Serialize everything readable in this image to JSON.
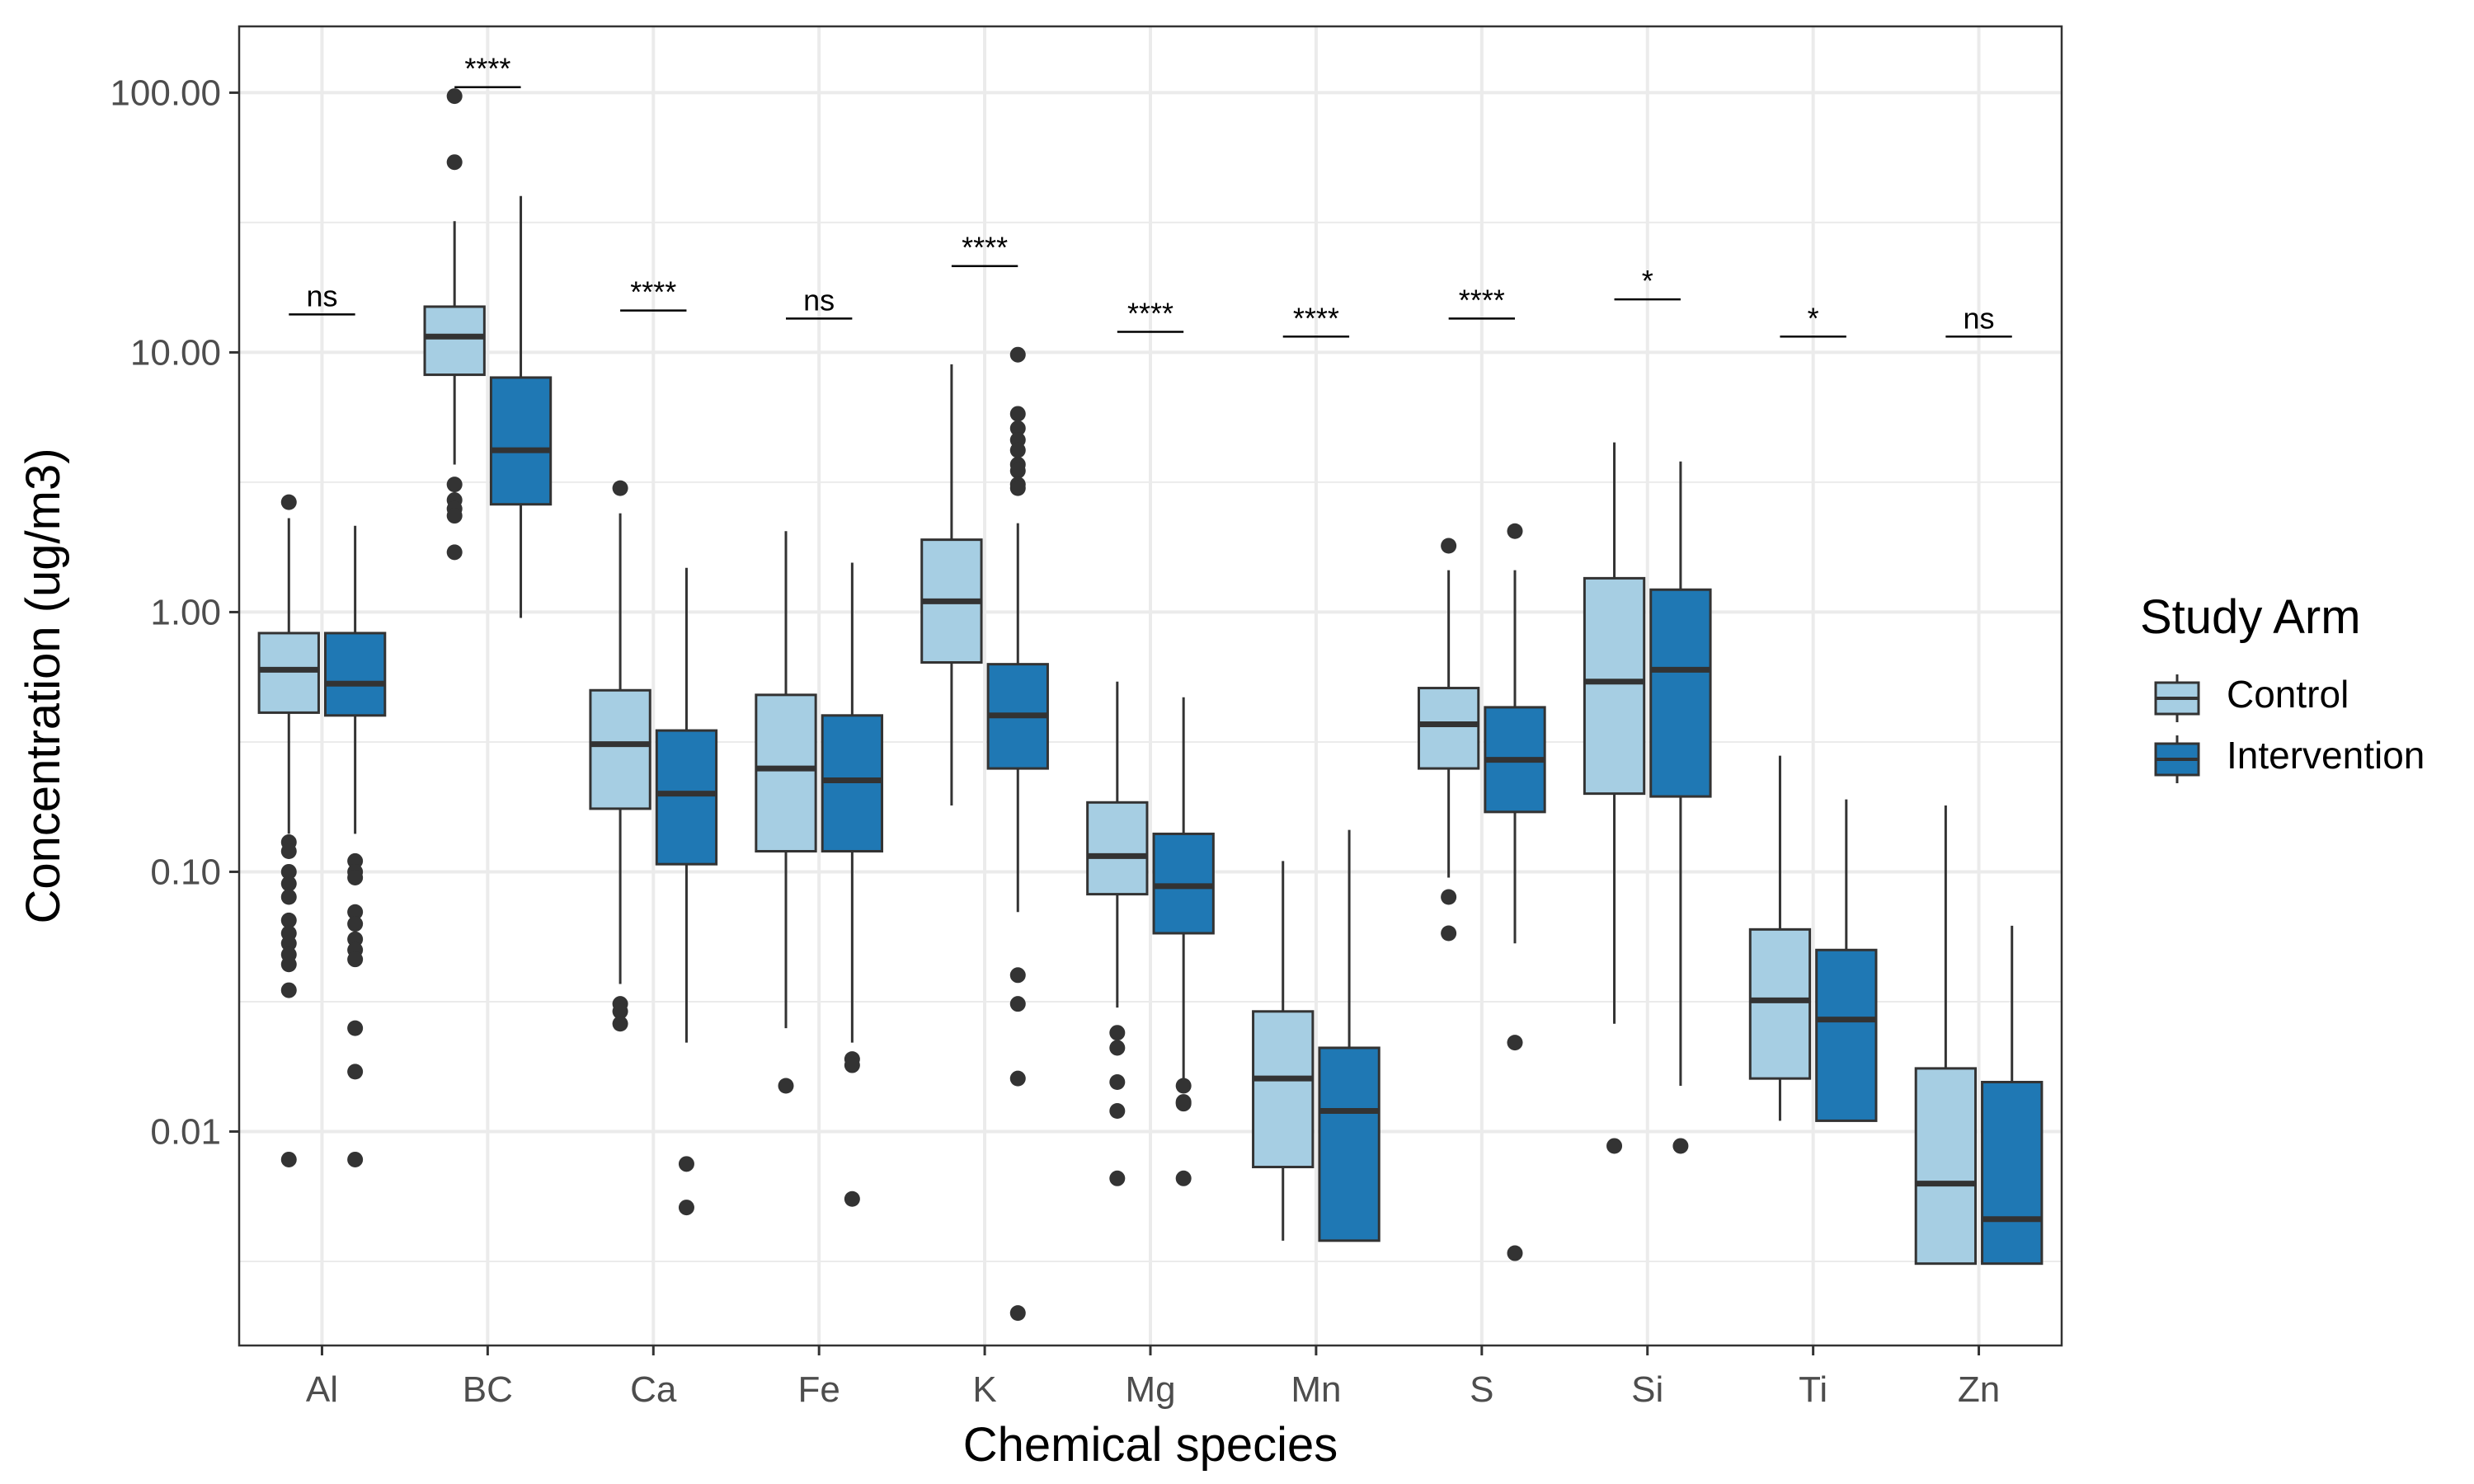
{
  "chart_data": {
    "type": "boxplot",
    "xlabel": "Chemical species",
    "ylabel": "Concentration (ug/m3)",
    "y_scale": "log10",
    "ylim": [
      0.0015,
      180
    ],
    "y_ticks": [
      0.01,
      0.1,
      1,
      10,
      100
    ],
    "y_tick_labels": [
      "0.01",
      "0.10",
      "1.00",
      "10.00",
      "100.00"
    ],
    "grid": true,
    "legend": {
      "title": "Study Arm",
      "placement": "right",
      "entries": [
        "Control",
        "Intervention"
      ]
    },
    "colors": {
      "Control": "#a6cee3",
      "Intervention": "#1f78b4",
      "outline": "#333333",
      "grid": "#ebebeb"
    },
    "categories": [
      "Al",
      "BC",
      "Ca",
      "Fe",
      "K",
      "Mg",
      "Mn",
      "S",
      "Si",
      "Ti",
      "Zn"
    ],
    "significance": [
      "ns",
      "****",
      "****",
      "ns",
      "****",
      "****",
      "****",
      "****",
      "*",
      "*",
      "ns"
    ],
    "significance_bracket_y": [
      14,
      105,
      14.5,
      13.5,
      21.5,
      12,
      11.5,
      13.5,
      16,
      11.5,
      11.5
    ],
    "series": [
      {
        "name": "Control",
        "boxes": [
          {
            "whisker_low": 0.14,
            "q1": 0.41,
            "median": 0.6,
            "q3": 0.83,
            "whisker_high": 2.3,
            "outliers": [
              2.65,
              0.13,
              0.12,
              0.1,
              0.09,
              0.08,
              0.065,
              0.058,
              0.053,
              0.048,
              0.044,
              0.035,
              0.0078
            ]
          },
          {
            "whisker_low": 3.7,
            "q1": 8.2,
            "median": 11.5,
            "q3": 15,
            "whisker_high": 32,
            "outliers": [
              97,
              54,
              3.1,
              2.7,
              2.5,
              2.35,
              1.7
            ]
          },
          {
            "whisker_low": 0.037,
            "q1": 0.175,
            "median": 0.31,
            "q3": 0.5,
            "whisker_high": 2.4,
            "outliers": [
              3.0,
              0.031,
              0.029,
              0.026
            ]
          },
          {
            "whisker_low": 0.025,
            "q1": 0.12,
            "median": 0.25,
            "q3": 0.48,
            "whisker_high": 2.05,
            "outliers": [
              0.015
            ]
          },
          {
            "whisker_low": 0.18,
            "q1": 0.64,
            "median": 1.1,
            "q3": 1.9,
            "whisker_high": 9.0,
            "outliers": []
          },
          {
            "whisker_low": 0.03,
            "q1": 0.082,
            "median": 0.115,
            "q3": 0.185,
            "whisker_high": 0.54,
            "outliers": [
              0.024,
              0.021,
              0.0155,
              0.012,
              0.0066
            ]
          },
          {
            "whisker_low": 0.0038,
            "q1": 0.0073,
            "median": 0.016,
            "q3": 0.029,
            "whisker_high": 0.11,
            "outliers": []
          },
          {
            "whisker_low": 0.095,
            "q1": 0.25,
            "median": 0.37,
            "q3": 0.51,
            "whisker_high": 1.45,
            "outliers": [
              1.8,
              0.08,
              0.058
            ]
          },
          {
            "whisker_low": 0.026,
            "q1": 0.2,
            "median": 0.54,
            "q3": 1.35,
            "whisker_high": 4.5,
            "outliers": [
              0.0088
            ]
          },
          {
            "whisker_low": 0.011,
            "q1": 0.016,
            "median": 0.032,
            "q3": 0.06,
            "whisker_high": 0.28,
            "outliers": []
          },
          {
            "whisker_low": 0.0031,
            "q1": 0.0031,
            "median": 0.0063,
            "q3": 0.0175,
            "whisker_high": 0.18,
            "outliers": []
          }
        ]
      },
      {
        "name": "Intervention",
        "boxes": [
          {
            "whisker_low": 0.14,
            "q1": 0.4,
            "median": 0.53,
            "q3": 0.83,
            "whisker_high": 2.15,
            "outliers": [
              0.11,
              0.1,
              0.095,
              0.07,
              0.063,
              0.055,
              0.05,
              0.046,
              0.025,
              0.017,
              0.0078
            ]
          },
          {
            "whisker_low": 0.95,
            "q1": 2.6,
            "median": 4.2,
            "q3": 8.0,
            "whisker_high": 40,
            "outliers": []
          },
          {
            "whisker_low": 0.022,
            "q1": 0.107,
            "median": 0.2,
            "q3": 0.35,
            "whisker_high": 1.48,
            "outliers": [
              0.0075,
              0.0051
            ]
          },
          {
            "whisker_low": 0.022,
            "q1": 0.12,
            "median": 0.225,
            "q3": 0.4,
            "whisker_high": 1.55,
            "outliers": [
              0.019,
              0.018,
              0.0055
            ]
          },
          {
            "whisker_low": 0.07,
            "q1": 0.25,
            "median": 0.4,
            "q3": 0.63,
            "whisker_high": 2.2,
            "outliers": [
              9.8,
              5.8,
              5.1,
              4.6,
              4.2,
              3.7,
              3.5,
              3.1,
              3.0,
              0.04,
              0.031,
              0.016,
              0.002
            ]
          },
          {
            "whisker_low": 0.016,
            "q1": 0.058,
            "median": 0.088,
            "q3": 0.14,
            "whisker_high": 0.47,
            "outliers": [
              0.015,
              0.013,
              0.0128,
              0.0066
            ]
          },
          {
            "whisker_low": 0.0038,
            "q1": 0.0038,
            "median": 0.012,
            "q3": 0.021,
            "whisker_high": 0.145,
            "outliers": []
          },
          {
            "whisker_low": 0.053,
            "q1": 0.17,
            "median": 0.27,
            "q3": 0.43,
            "whisker_high": 1.45,
            "outliers": [
              2.05,
              0.022,
              0.0034
            ]
          },
          {
            "whisker_low": 0.015,
            "q1": 0.195,
            "median": 0.6,
            "q3": 1.22,
            "whisker_high": 3.8,
            "outliers": [
              0.0088
            ]
          },
          {
            "whisker_low": 0.011,
            "q1": 0.011,
            "median": 0.027,
            "q3": 0.05,
            "whisker_high": 0.19,
            "outliers": []
          },
          {
            "whisker_low": 0.0031,
            "q1": 0.0031,
            "median": 0.0046,
            "q3": 0.0155,
            "whisker_high": 0.062,
            "outliers": []
          }
        ]
      }
    ]
  }
}
